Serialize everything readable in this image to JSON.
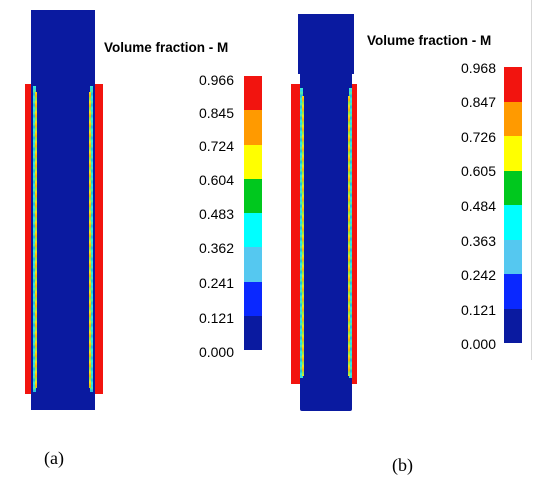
{
  "panel_a": {
    "legend_title": "Volume fraction - M",
    "tick_labels": [
      "0.966",
      "0.845",
      "0.724",
      "0.604",
      "0.483",
      "0.362",
      "0.241",
      "0.121",
      "0.000"
    ],
    "caption": "(a)"
  },
  "panel_b": {
    "legend_title": "Volume fraction - M",
    "tick_labels": [
      "0.968",
      "0.847",
      "0.726",
      "0.605",
      "0.484",
      "0.363",
      "0.242",
      "0.121",
      "0.000"
    ],
    "caption": "(b)"
  },
  "colors": {
    "rod": "#0a1aa0",
    "sleeve": "#f2140f",
    "legend_top_to_bottom": [
      "#f2140f",
      "#ff9a00",
      "#ffff00",
      "#00c81e",
      "#00ffff",
      "#55c8f0",
      "#0a28ff",
      "#0a1aa0"
    ]
  }
}
